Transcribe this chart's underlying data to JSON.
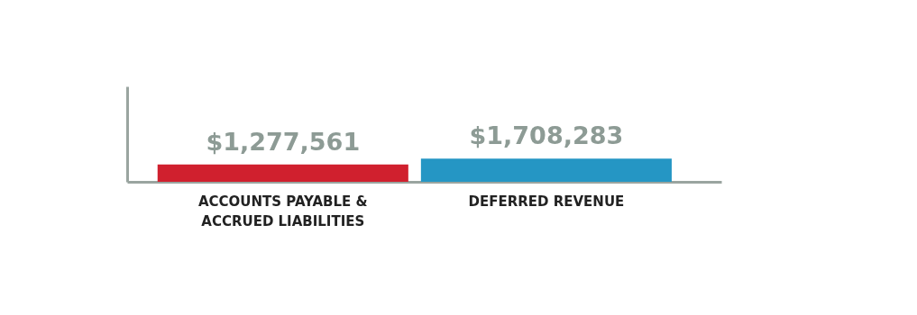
{
  "chart_data": {
    "type": "bar",
    "categories": [
      "ACCOUNTS PAYABLE & ACCRUED LIABILITIES",
      "DEFERRED REVENUE"
    ],
    "values": [
      1277561,
      1708283
    ],
    "colors": [
      "#d0202e",
      "#2596c4"
    ],
    "value_labels": [
      "$1,277,561",
      "$1,708,283"
    ],
    "ylim": [
      0,
      7000000
    ],
    "tick_labels": "x",
    "grid": false
  }
}
